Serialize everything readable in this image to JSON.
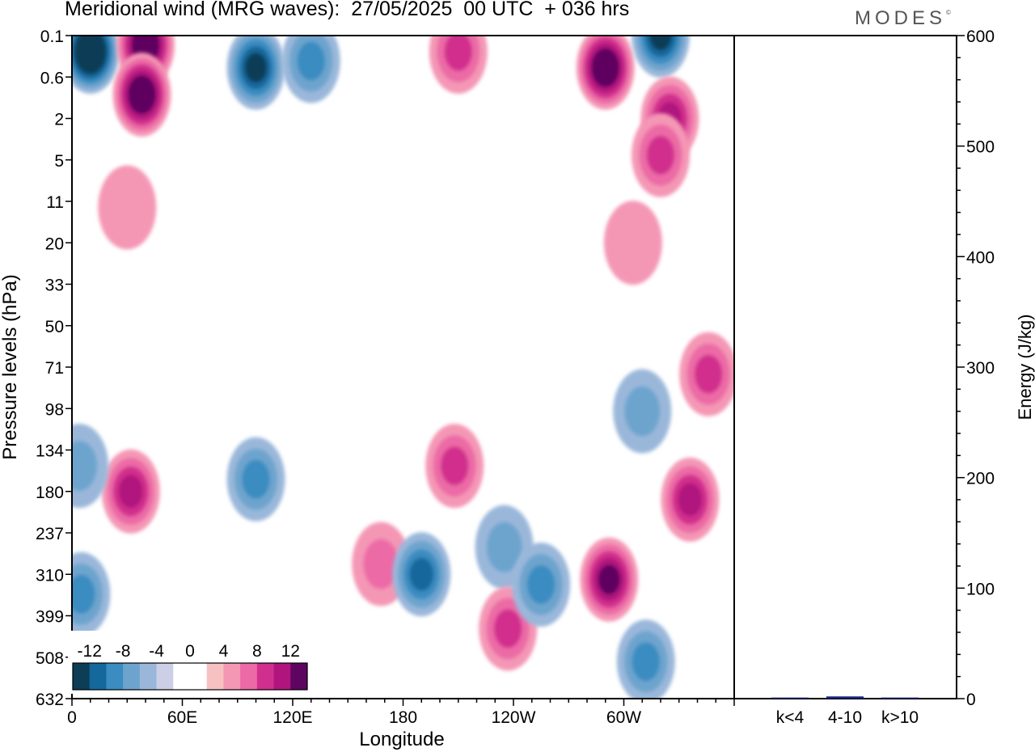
{
  "title": "Meridional wind (MRG waves):  27/05/2025  00 UTC  + 036 hrs",
  "brand": "MODES",
  "brand_mark": "©",
  "chart_data": [
    {
      "type": "heatmap",
      "xlabel": "Longitude",
      "ylabel": "Pressure levels (hPa)",
      "x_ticks": [
        {
          "label": "0",
          "lon": 0
        },
        {
          "label": "60E",
          "lon": 60
        },
        {
          "label": "120E",
          "lon": 120
        },
        {
          "label": "180",
          "lon": 180
        },
        {
          "label": "120W",
          "lon": 240
        },
        {
          "label": "60W",
          "lon": 300
        }
      ],
      "xlim": [
        0,
        360
      ],
      "y_ticks": [
        "0.1",
        "0.6",
        "2",
        "5",
        "11",
        "20",
        "33",
        "50",
        "71",
        "98",
        "134",
        "180",
        "237",
        "310",
        "399",
        "508",
        "632"
      ],
      "colorbar": {
        "labels": [
          "-12",
          "-8",
          "-4",
          "0",
          "4",
          "8",
          "12"
        ],
        "colors": [
          "#0d3d57",
          "#14689c",
          "#3a8cc1",
          "#6da4cd",
          "#9ab7da",
          "#cccfe6",
          "#ffffff",
          "#ffffff",
          "#f7c1c1",
          "#f497b5",
          "#ec6aa6",
          "#d12f8d",
          "#b0157d",
          "#5e0561"
        ]
      },
      "features": [
        {
          "lon": 10,
          "p": 0.2,
          "value": -16
        },
        {
          "lon": 40,
          "p": 0.15,
          "value": 14
        },
        {
          "lon": 38,
          "p": 1.0,
          "value": 14
        },
        {
          "lon": 100,
          "p": 0.4,
          "value": -13
        },
        {
          "lon": 130,
          "p": 0.3,
          "value": -9
        },
        {
          "lon": 290,
          "p": 0.4,
          "value": 14
        },
        {
          "lon": 320,
          "p": 0.1,
          "value": -13
        },
        {
          "lon": 210,
          "p": 0.2,
          "value": 8
        },
        {
          "lon": 325,
          "p": 2.0,
          "value": 10
        },
        {
          "lon": 320,
          "p": 4.5,
          "value": 8
        },
        {
          "lon": 30,
          "p": 12,
          "value": 4
        },
        {
          "lon": 305,
          "p": 20,
          "value": 4
        },
        {
          "lon": 32,
          "p": 180,
          "value": 11
        },
        {
          "lon": 100,
          "p": 165,
          "value": -9
        },
        {
          "lon": 4,
          "p": 150,
          "value": -6
        },
        {
          "lon": 5,
          "p": 350,
          "value": -8
        },
        {
          "lon": 208,
          "p": 150,
          "value": 8
        },
        {
          "lon": 168,
          "p": 290,
          "value": 7
        },
        {
          "lon": 190,
          "p": 310,
          "value": -11
        },
        {
          "lon": 235,
          "p": 260,
          "value": -6
        },
        {
          "lon": 237,
          "p": 430,
          "value": 9
        },
        {
          "lon": 255,
          "p": 330,
          "value": -8
        },
        {
          "lon": 292,
          "p": 320,
          "value": 12
        },
        {
          "lon": 312,
          "p": 520,
          "value": -8
        },
        {
          "lon": 336,
          "p": 190,
          "value": 11
        },
        {
          "lon": 346,
          "p": 75,
          "value": 8
        },
        {
          "lon": 310,
          "p": 100,
          "value": -6
        }
      ]
    },
    {
      "type": "bar",
      "categories": [
        "k<4",
        "4-10",
        "k>10"
      ],
      "values": [
        1,
        2,
        1
      ],
      "ylabel": "Energy (J/kg)",
      "ylim": [
        0,
        600
      ],
      "y_ticks": [
        0,
        100,
        200,
        300,
        400,
        500,
        600
      ],
      "bar_color": "#1a237e"
    }
  ]
}
